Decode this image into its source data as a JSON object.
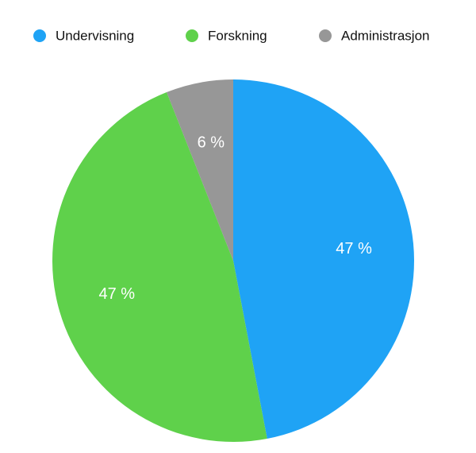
{
  "chart_data": {
    "type": "pie",
    "series": [
      {
        "name": "Undervisning",
        "color": "#1fa3f5",
        "values": [
          47
        ],
        "value_labels": [
          "47 %"
        ]
      },
      {
        "name": "Forskning",
        "color": "#5fd14b",
        "values": [
          47
        ],
        "value_labels": [
          "47 %"
        ]
      },
      {
        "name": "Administrasjon",
        "color": "#979797",
        "values": [
          6
        ],
        "value_labels": [
          "6 %"
        ]
      }
    ],
    "legend": "top"
  }
}
